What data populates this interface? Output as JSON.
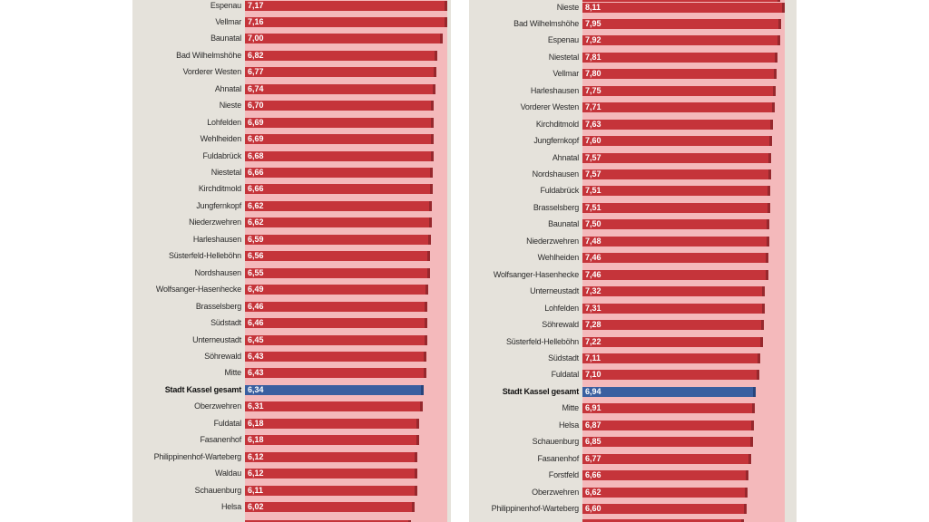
{
  "colors": {
    "bar_red": "#c5343a",
    "bar_red_cap": "#97282d",
    "bar_highlight_blue": "#3a5fa0",
    "bar_highlight_cap": "#27457c",
    "row_background_pink": "#f4b9bb",
    "panel_background": "#e5e2db",
    "page_background": "#ffffff",
    "label_text": "#2b2b2b",
    "value_text": "#ffffff"
  },
  "chart_data": [
    {
      "type": "bar",
      "orientation": "horizontal",
      "panel": "left",
      "axes_visible": false,
      "grid": false,
      "value_format": "german-decimal-comma",
      "axis_max": 7.17,
      "highlight_label": "Stadt Kassel gesamt",
      "rows": [
        {
          "label": "Espenau",
          "display": "7,17",
          "value": 7.17
        },
        {
          "label": "Vellmar",
          "display": "7,16",
          "value": 7.16
        },
        {
          "label": "Baunatal",
          "display": "7,00",
          "value": 7.0
        },
        {
          "label": "Bad Wilhelmshöhe",
          "display": "6,82",
          "value": 6.82
        },
        {
          "label": "Vorderer Westen",
          "display": "6,77",
          "value": 6.77
        },
        {
          "label": "Ahnatal",
          "display": "6,74",
          "value": 6.74
        },
        {
          "label": "Nieste",
          "display": "6,70",
          "value": 6.7
        },
        {
          "label": "Lohfelden",
          "display": "6,69",
          "value": 6.69
        },
        {
          "label": "Wehlheiden",
          "display": "6,69",
          "value": 6.69
        },
        {
          "label": "Fuldabrück",
          "display": "6,68",
          "value": 6.68
        },
        {
          "label": "Niestetal",
          "display": "6,66",
          "value": 6.66
        },
        {
          "label": "Kirchditmold",
          "display": "6,66",
          "value": 6.66
        },
        {
          "label": "Jungfernkopf",
          "display": "6,62",
          "value": 6.62
        },
        {
          "label": "Niederzwehren",
          "display": "6,62",
          "value": 6.62
        },
        {
          "label": "Harleshausen",
          "display": "6,59",
          "value": 6.59
        },
        {
          "label": "Süsterfeld-Helleböhn",
          "display": "6,56",
          "value": 6.56
        },
        {
          "label": "Nordshausen",
          "display": "6,55",
          "value": 6.55
        },
        {
          "label": "Wolfsanger-Hasenhecke",
          "display": "6,49",
          "value": 6.49
        },
        {
          "label": "Brasselsberg",
          "display": "6,46",
          "value": 6.46
        },
        {
          "label": "Südstadt",
          "display": "6,46",
          "value": 6.46
        },
        {
          "label": "Unterneustadt",
          "display": "6,45",
          "value": 6.45
        },
        {
          "label": "Söhrewald",
          "display": "6,43",
          "value": 6.43
        },
        {
          "label": "Mitte",
          "display": "6,43",
          "value": 6.43
        },
        {
          "label": "Stadt Kassel gesamt",
          "display": "6,34",
          "value": 6.34,
          "highlight": true
        },
        {
          "label": "Oberzwehren",
          "display": "6,31",
          "value": 6.31
        },
        {
          "label": "Fuldatal",
          "display": "6,18",
          "value": 6.18
        },
        {
          "label": "Fasanenhof",
          "display": "6,18",
          "value": 6.18
        },
        {
          "label": "Philippinenhof-Warteberg",
          "display": "6,12",
          "value": 6.12
        },
        {
          "label": "Waldau",
          "display": "6,12",
          "value": 6.12
        },
        {
          "label": "Schauenburg",
          "display": "6,11",
          "value": 6.11
        },
        {
          "label": "Helsa",
          "display": "6,02",
          "value": 6.02
        }
      ]
    },
    {
      "type": "bar",
      "orientation": "horizontal",
      "panel": "right",
      "axes_visible": false,
      "grid": false,
      "value_format": "german-decimal-comma",
      "axis_max": 8.11,
      "highlight_label": "Stadt Kassel gesamt",
      "rows": [
        {
          "label": "Nieste",
          "display": "8,11",
          "value": 8.11
        },
        {
          "label": "Bad Wilhelmshöhe",
          "display": "7,95",
          "value": 7.95
        },
        {
          "label": "Espenau",
          "display": "7,92",
          "value": 7.92
        },
        {
          "label": "Niestetal",
          "display": "7,81",
          "value": 7.81
        },
        {
          "label": "Vellmar",
          "display": "7,80",
          "value": 7.8
        },
        {
          "label": "Harleshausen",
          "display": "7,75",
          "value": 7.75
        },
        {
          "label": "Vorderer Westen",
          "display": "7,71",
          "value": 7.71
        },
        {
          "label": "Kirchditmold",
          "display": "7,63",
          "value": 7.63
        },
        {
          "label": "Jungfernkopf",
          "display": "7,60",
          "value": 7.6
        },
        {
          "label": "Ahnatal",
          "display": "7,57",
          "value": 7.57
        },
        {
          "label": "Nordshausen",
          "display": "7,57",
          "value": 7.57
        },
        {
          "label": "Fuldabrück",
          "display": "7,51",
          "value": 7.51
        },
        {
          "label": "Brasselsberg",
          "display": "7,51",
          "value": 7.51
        },
        {
          "label": "Baunatal",
          "display": "7,50",
          "value": 7.5
        },
        {
          "label": "Niederzwehren",
          "display": "7,48",
          "value": 7.48
        },
        {
          "label": "Wehlheiden",
          "display": "7,46",
          "value": 7.46
        },
        {
          "label": "Wolfsanger-Hasenhecke",
          "display": "7,46",
          "value": 7.46
        },
        {
          "label": "Unterneustadt",
          "display": "7,32",
          "value": 7.32
        },
        {
          "label": "Lohfelden",
          "display": "7,31",
          "value": 7.31
        },
        {
          "label": "Söhrewald",
          "display": "7,28",
          "value": 7.28
        },
        {
          "label": "Süsterfeld-Helleböhn",
          "display": "7,22",
          "value": 7.22
        },
        {
          "label": "Südstadt",
          "display": "7,11",
          "value": 7.11
        },
        {
          "label": "Fuldatal",
          "display": "7,10",
          "value": 7.1
        },
        {
          "label": "Stadt Kassel gesamt",
          "display": "6,94",
          "value": 6.94,
          "highlight": true
        },
        {
          "label": "Mitte",
          "display": "6,91",
          "value": 6.91
        },
        {
          "label": "Helsa",
          "display": "6,87",
          "value": 6.87
        },
        {
          "label": "Schauenburg",
          "display": "6,85",
          "value": 6.85
        },
        {
          "label": "Fasanenhof",
          "display": "6,77",
          "value": 6.77
        },
        {
          "label": "Forstfeld",
          "display": "6,66",
          "value": 6.66
        },
        {
          "label": "Oberzwehren",
          "display": "6,62",
          "value": 6.62
        },
        {
          "label": "Philippinenhof-Warteberg",
          "display": "6,60",
          "value": 6.6
        }
      ]
    }
  ]
}
